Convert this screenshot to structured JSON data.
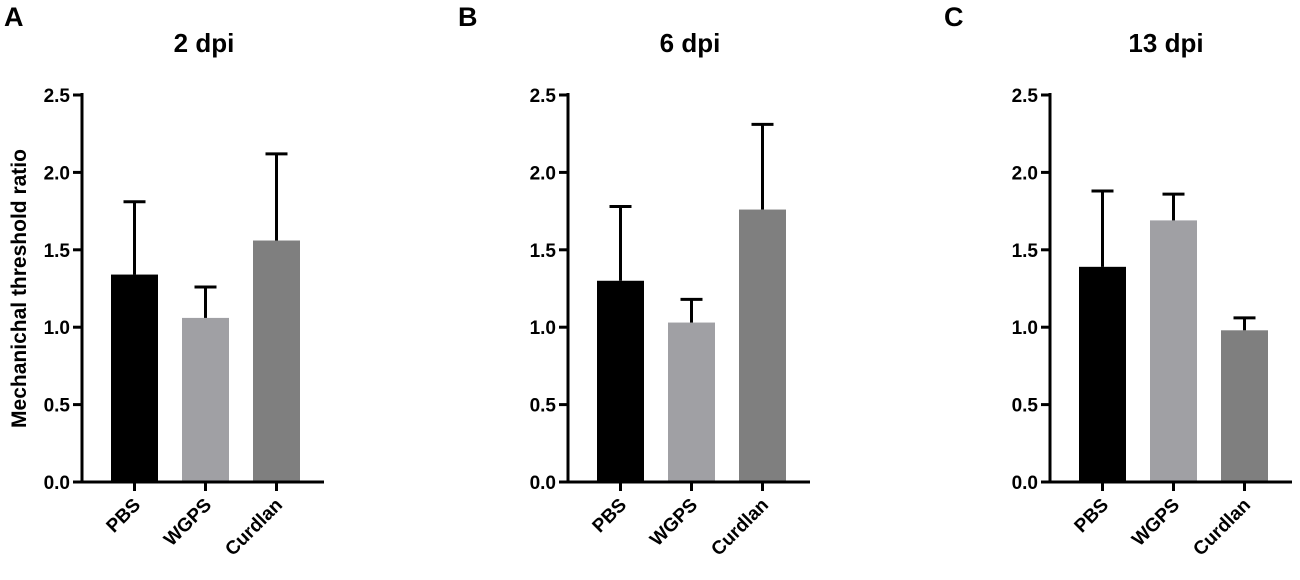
{
  "colors": {
    "PBS": "#000000",
    "WGPS": "#a0a0a4",
    "Curdlan": "#7f7f7f",
    "axis": "#000000"
  },
  "chart_data": [
    {
      "type": "bar",
      "panel": "A",
      "title": "2 dpi",
      "ylabel": "Mechanichal threshold ratio",
      "xlabel": "",
      "categories": [
        "PBS",
        "WGPS",
        "Curdlan"
      ],
      "values": [
        1.34,
        1.06,
        1.56
      ],
      "error_upper": [
        1.81,
        1.26,
        2.12
      ],
      "ylim": [
        0,
        2.5
      ],
      "yticks": [
        "0.0",
        "0.5",
        "1.0",
        "1.5",
        "2.0",
        "2.5"
      ],
      "grid": false
    },
    {
      "type": "bar",
      "panel": "B",
      "title": "6 dpi",
      "ylabel": "",
      "xlabel": "",
      "categories": [
        "PBS",
        "WGPS",
        "Curdlan"
      ],
      "values": [
        1.3,
        1.03,
        1.76
      ],
      "error_upper": [
        1.78,
        1.18,
        2.31
      ],
      "ylim": [
        0,
        2.5
      ],
      "yticks": [
        "0.0",
        "0.5",
        "1.0",
        "1.5",
        "2.0",
        "2.5"
      ],
      "grid": false
    },
    {
      "type": "bar",
      "panel": "C",
      "title": "13 dpi",
      "ylabel": "",
      "xlabel": "",
      "categories": [
        "PBS",
        "WGPS",
        "Curdlan"
      ],
      "values": [
        1.39,
        1.69,
        0.98
      ],
      "error_upper": [
        1.88,
        1.86,
        1.06
      ],
      "ylim": [
        0,
        2.5
      ],
      "yticks": [
        "0.0",
        "0.5",
        "1.0",
        "1.5",
        "2.0",
        "2.5"
      ],
      "grid": false
    }
  ]
}
